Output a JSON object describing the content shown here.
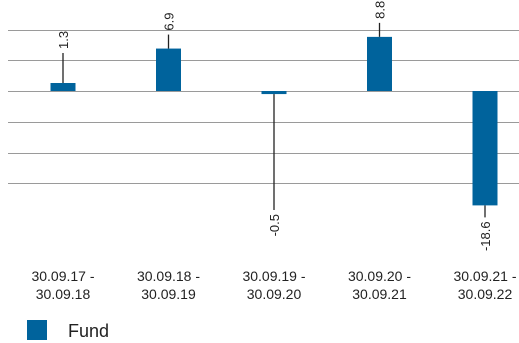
{
  "chart_data": {
    "type": "bar",
    "categories": [
      [
        "30.09.17 -",
        "30.09.18"
      ],
      [
        "30.09.18 -",
        "30.09.19"
      ],
      [
        "30.09.19 -",
        "30.09.20"
      ],
      [
        "30.09.20 -",
        "30.09.21"
      ],
      [
        "30.09.21 -",
        "30.09.22"
      ]
    ],
    "series": [
      {
        "name": "Fund",
        "values": [
          1.3,
          6.9,
          -0.5,
          8.8,
          -18.6
        ],
        "value_labels": [
          "1.3",
          "6.9",
          "-0.5",
          "8.8",
          "-18.6"
        ]
      }
    ],
    "ylim": [
      -20,
      10
    ],
    "gridlines": [
      10,
      5,
      0,
      -5,
      -10,
      -15
    ],
    "y_tick_labels_shown": false,
    "grid": true,
    "legend_position": "bottom-left",
    "title": "",
    "xlabel": "",
    "ylabel": "",
    "colors": {
      "bar": "#00639c",
      "grid": "#9a9a9a",
      "text": "#222222"
    }
  }
}
